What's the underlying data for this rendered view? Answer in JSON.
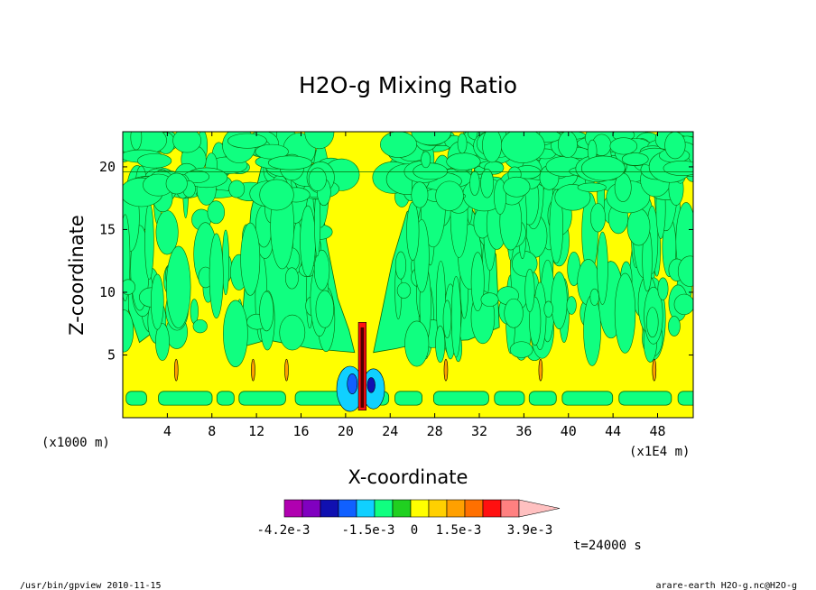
{
  "chart_data": {
    "type": "heatmap",
    "title": "H2O-g Mixing Ratio",
    "xlabel": "X-coordinate",
    "ylabel": "Z-coordinate",
    "x_unit": "(x1000 m)",
    "x_scale_note": "(x1E4 m)",
    "x_ticks": [
      4,
      8,
      12,
      16,
      20,
      24,
      28,
      32,
      36,
      40,
      44,
      48
    ],
    "y_ticks": [
      5,
      10,
      15,
      20
    ],
    "xlim": [
      0,
      51.2
    ],
    "ylim": [
      0,
      22.8
    ],
    "time_label": "t=24000 s",
    "colorbar": {
      "colors": [
        "#b000b0",
        "#8000c0",
        "#1010b0",
        "#1060ff",
        "#10d0ff",
        "#10ff80",
        "#20d020",
        "#ffff00",
        "#ffd000",
        "#ffa000",
        "#ff7000",
        "#ff1010",
        "#ff8080",
        "#ffc0c0"
      ],
      "labels": [
        "-4.2e-3",
        "-1.5e-3",
        "0",
        "1.5e-3",
        "3.9e-3"
      ]
    },
    "plume_center_x": 21.5
  },
  "footer": {
    "left": "/usr/bin/gpview  2010-11-15",
    "right": "arare-earth_H2O-g.nc@H2O-g"
  }
}
